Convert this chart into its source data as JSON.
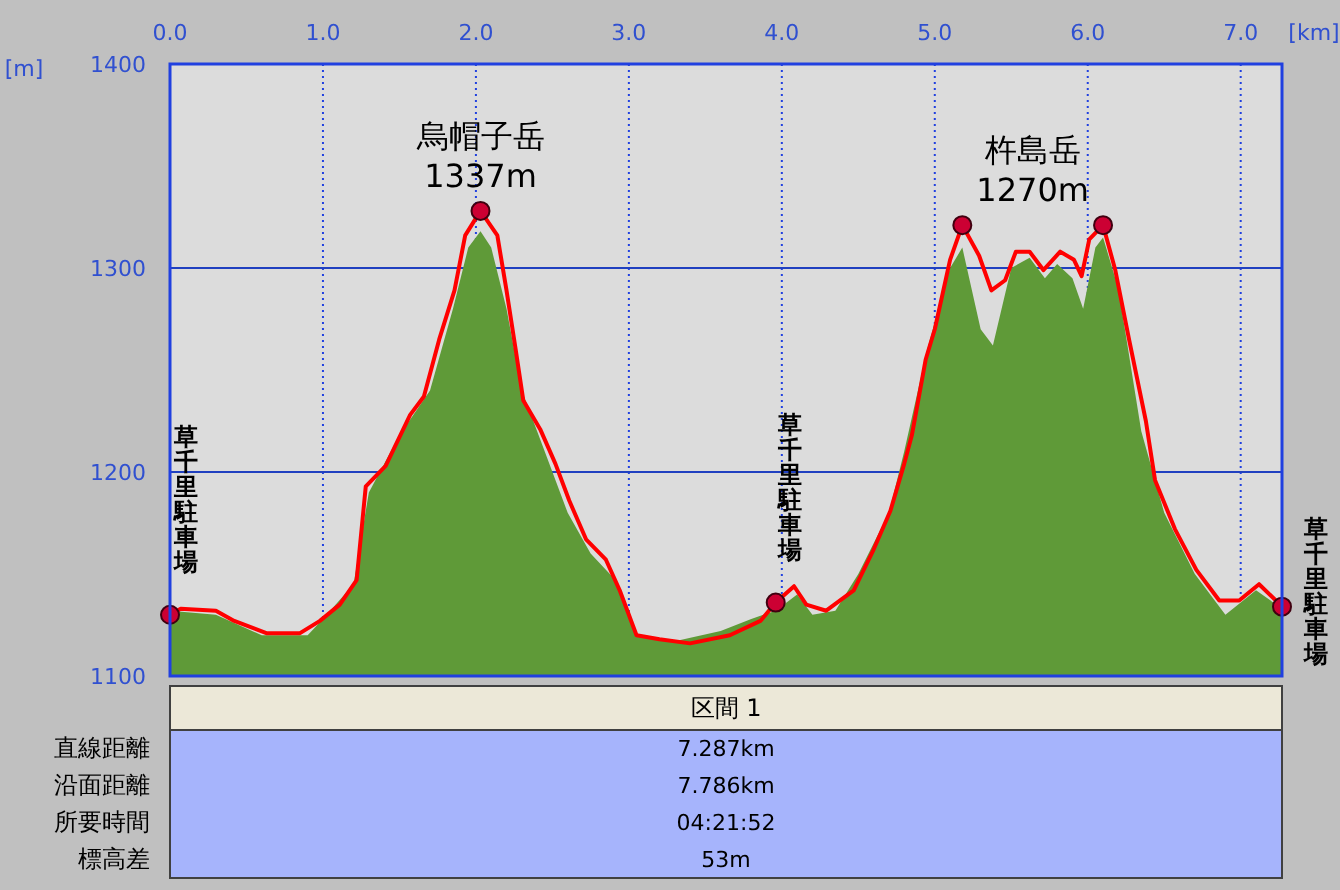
{
  "chart_data": {
    "type": "area",
    "xlabel": "[km]",
    "ylabel": "[m]",
    "xlim": [
      0,
      7.27
    ],
    "ylim": [
      1100,
      1400
    ],
    "xticks": [
      {
        "value": 0,
        "label": "0.0"
      },
      {
        "value": 1,
        "label": "1.0"
      },
      {
        "value": 2,
        "label": "2.0"
      },
      {
        "value": 3,
        "label": "3.0"
      },
      {
        "value": 4,
        "label": "4.0"
      },
      {
        "value": 5,
        "label": "5.0"
      },
      {
        "value": 6,
        "label": "6.0"
      },
      {
        "value": 7,
        "label": "7.0"
      }
    ],
    "yticks": [
      1100,
      1200,
      1300,
      1400
    ],
    "grid": true,
    "series": [
      {
        "color": "#5f9a38",
        "x": [
          0,
          0.3,
          0.6,
          0.9,
          1.0,
          1.2,
          1.3,
          1.5,
          1.7,
          1.85,
          1.95,
          2.03,
          2.1,
          2.2,
          2.3,
          2.45,
          2.6,
          2.75,
          2.9,
          3.05,
          3.3,
          3.6,
          3.8,
          3.96,
          4.1,
          4.2,
          4.35,
          4.5,
          4.7,
          4.8,
          4.95,
          5.1,
          5.18,
          5.3,
          5.38,
          5.5,
          5.62,
          5.72,
          5.8,
          5.9,
          5.97,
          6.05,
          6.1,
          6.2,
          6.35,
          6.5,
          6.7,
          6.9,
          7.1,
          7.27
        ],
        "values": [
          1132,
          1130,
          1120,
          1120,
          1128,
          1145,
          1190,
          1218,
          1240,
          1280,
          1310,
          1318,
          1310,
          1280,
          1240,
          1210,
          1180,
          1160,
          1148,
          1120,
          1117,
          1122,
          1128,
          1132,
          1140,
          1130,
          1132,
          1150,
          1180,
          1210,
          1260,
          1300,
          1310,
          1270,
          1262,
          1300,
          1305,
          1295,
          1302,
          1295,
          1280,
          1310,
          1315,
          1290,
          1220,
          1180,
          1150,
          1130,
          1142,
          1133
        ]
      },
      {
        "type": "line",
        "color": "#ff0000",
        "x": [
          0,
          0.07,
          0.3,
          0.42,
          0.63,
          0.85,
          0.98,
          1.11,
          1.22,
          1.28,
          1.41,
          1.57,
          1.66,
          1.76,
          1.86,
          1.93,
          2.03,
          2.14,
          2.2,
          2.26,
          2.31,
          2.42,
          2.52,
          2.61,
          2.72,
          2.85,
          2.94,
          3.05,
          3.2,
          3.4,
          3.66,
          3.86,
          3.96,
          4.08,
          4.16,
          4.29,
          4.47,
          4.6,
          4.71,
          4.8,
          4.85,
          4.94,
          5.0,
          5.1,
          5.18,
          5.29,
          5.37,
          5.46,
          5.53,
          5.62,
          5.71,
          5.82,
          5.91,
          5.96,
          6.01,
          6.1,
          6.18,
          6.27,
          6.38,
          6.44,
          6.57,
          6.71,
          6.86,
          6.99,
          7.12,
          7.23,
          7.27
        ],
        "values": [
          1130,
          1133,
          1132,
          1127,
          1121,
          1121,
          1127,
          1135,
          1147,
          1193,
          1203,
          1228,
          1237,
          1265,
          1289,
          1316,
          1328,
          1316,
          1289,
          1260,
          1235,
          1221,
          1204,
          1186,
          1167,
          1157,
          1142,
          1120,
          1118,
          1116,
          1120,
          1127,
          1136,
          1144,
          1135,
          1132,
          1142,
          1162,
          1181,
          1204,
          1218,
          1255,
          1270,
          1304,
          1321,
          1306,
          1289,
          1294,
          1308,
          1308,
          1299,
          1308,
          1304,
          1296,
          1314,
          1321,
          1299,
          1265,
          1225,
          1196,
          1172,
          1152,
          1137,
          1137,
          1145,
          1137,
          1134
        ]
      },
      {
        "type": "scatter",
        "color": "#cc0033",
        "marker": "circle",
        "x": [
          0,
          2.03,
          3.96,
          5.18,
          6.1,
          7.27
        ],
        "values": [
          1130,
          1328,
          1136,
          1321,
          1321,
          1134
        ]
      }
    ],
    "annotations": [
      {
        "text": "草千里駐車場",
        "x": 0,
        "y": 1130
      },
      {
        "text": "烏帽子岳\n1337m",
        "x": 2.03,
        "y": 1328
      },
      {
        "text": "草千里駐車場",
        "x": 3.96,
        "y": 1136
      },
      "杵島岳\n1270m",
      {
        "text": "草千里駐車場",
        "x": 7.27,
        "y": 1134
      },
      "区間 1",
      "直線距離",
      "7.287km",
      "沿面距離",
      "7.786km",
      "所要時間",
      "04:21:52",
      "標高差",
      "53m"
    ]
  }
}
